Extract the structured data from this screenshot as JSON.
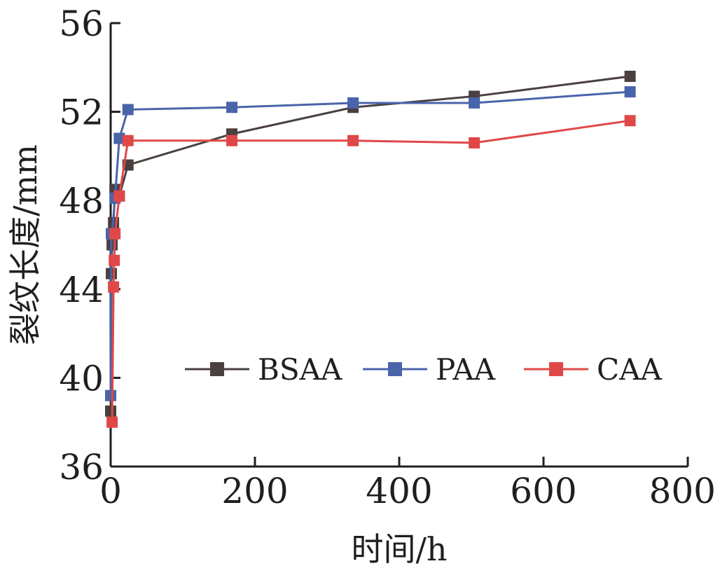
{
  "chart_data": {
    "type": "line",
    "xlabel": "时间/h",
    "ylabel": "裂纹长度/mm",
    "xlim": [
      0,
      800
    ],
    "ylim": [
      36,
      56
    ],
    "xticks": [
      0,
      200,
      400,
      600,
      800
    ],
    "yticks": [
      36,
      40,
      44,
      48,
      52,
      56
    ],
    "grid": false,
    "legend": {
      "position": "center-right",
      "orientation": "horizontal"
    },
    "series": [
      {
        "name": "BSAA",
        "color": "#4a4040",
        "marker": "square",
        "x": [
          0,
          1,
          2,
          4,
          6,
          12,
          24,
          168,
          336,
          504,
          720
        ],
        "y": [
          38.5,
          44.7,
          46.0,
          47.0,
          48.5,
          48.2,
          49.6,
          51.0,
          52.2,
          52.7,
          53.6
        ]
      },
      {
        "name": "PAA",
        "color": "#4a64aa",
        "marker": "square",
        "x": [
          0,
          1,
          2,
          6,
          12,
          24,
          168,
          336,
          504,
          720
        ],
        "y": [
          39.2,
          46.5,
          46.5,
          48.1,
          50.8,
          52.1,
          52.2,
          52.4,
          52.4,
          52.9
        ]
      },
      {
        "name": "CAA",
        "color": "#e04848",
        "marker": "square",
        "x": [
          2,
          4,
          5,
          6,
          12,
          24,
          168,
          336,
          504,
          720
        ],
        "y": [
          38.0,
          44.1,
          45.3,
          46.5,
          48.2,
          50.7,
          50.7,
          50.7,
          50.6,
          51.6
        ]
      }
    ]
  }
}
